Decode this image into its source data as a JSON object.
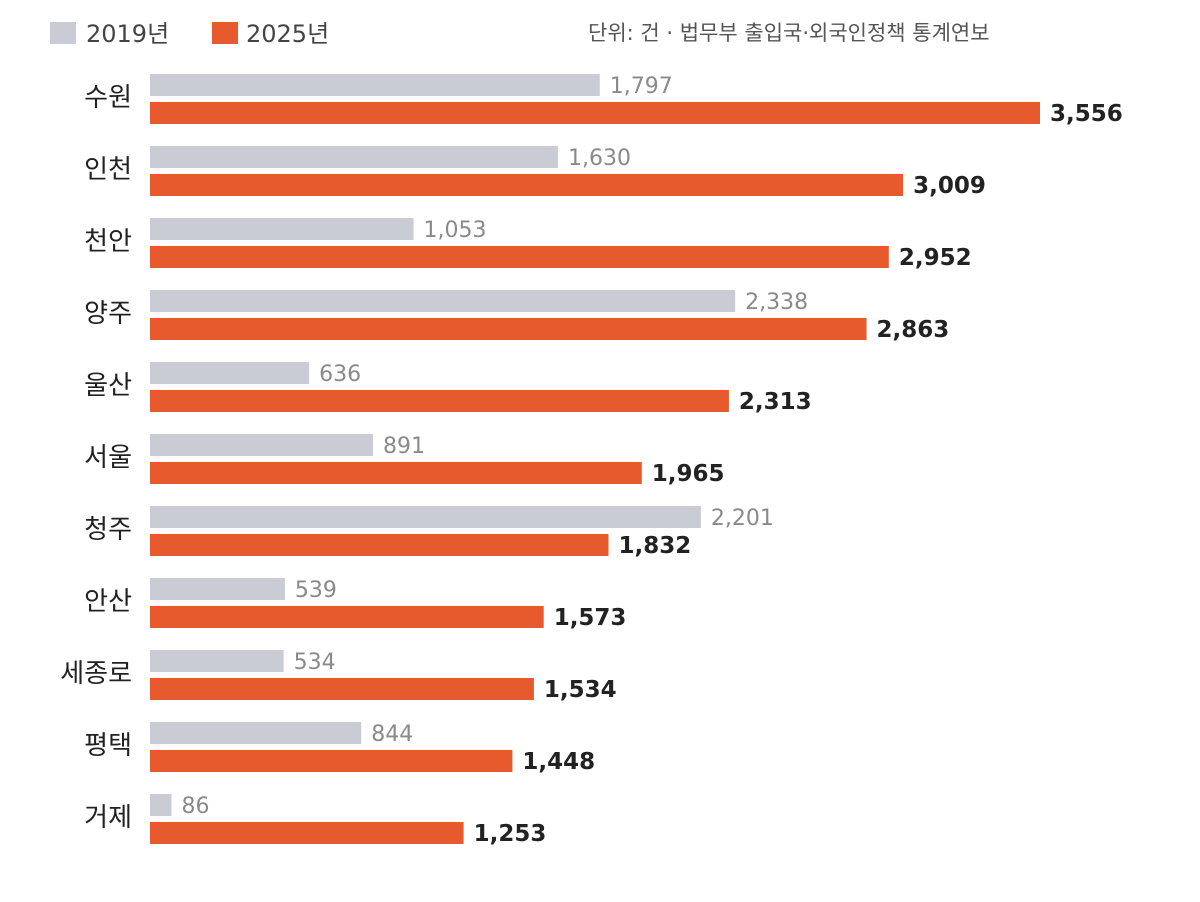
{
  "legend": {
    "item1": "2019년",
    "item2": "2025년"
  },
  "unit_note": "단위: 건 · 법무부 출입국·외국인정책 통계연보",
  "colors": {
    "series_2019": "#c9ccd5",
    "series_2025": "#e75a2e"
  },
  "chart_data": {
    "type": "bar",
    "orientation": "horizontal",
    "categories": [
      "수원",
      "인천",
      "천안",
      "양주",
      "울산",
      "서울",
      "청주",
      "안산",
      "세종로",
      "평택",
      "거제"
    ],
    "series": [
      {
        "name": "2019년",
        "values": [
          1797,
          1630,
          1053,
          2338,
          636,
          891,
          2201,
          539,
          534,
          844,
          86
        ],
        "labels": [
          "1,797",
          "1,630",
          "1,053",
          "2,338",
          "636",
          "891",
          "2,201",
          "539",
          "534",
          "844",
          "86"
        ]
      },
      {
        "name": "2025년",
        "values": [
          3556,
          3009,
          2952,
          2863,
          2313,
          1965,
          1832,
          1573,
          1534,
          1448,
          1253
        ],
        "labels": [
          "3,556",
          "3,009",
          "2,952",
          "2,863",
          "2,313",
          "1,965",
          "1,832",
          "1,573",
          "1,534",
          "1,448",
          "1,253"
        ]
      }
    ],
    "xlim": [
      0,
      3556
    ],
    "grid": false,
    "legend_position": "top-left"
  }
}
